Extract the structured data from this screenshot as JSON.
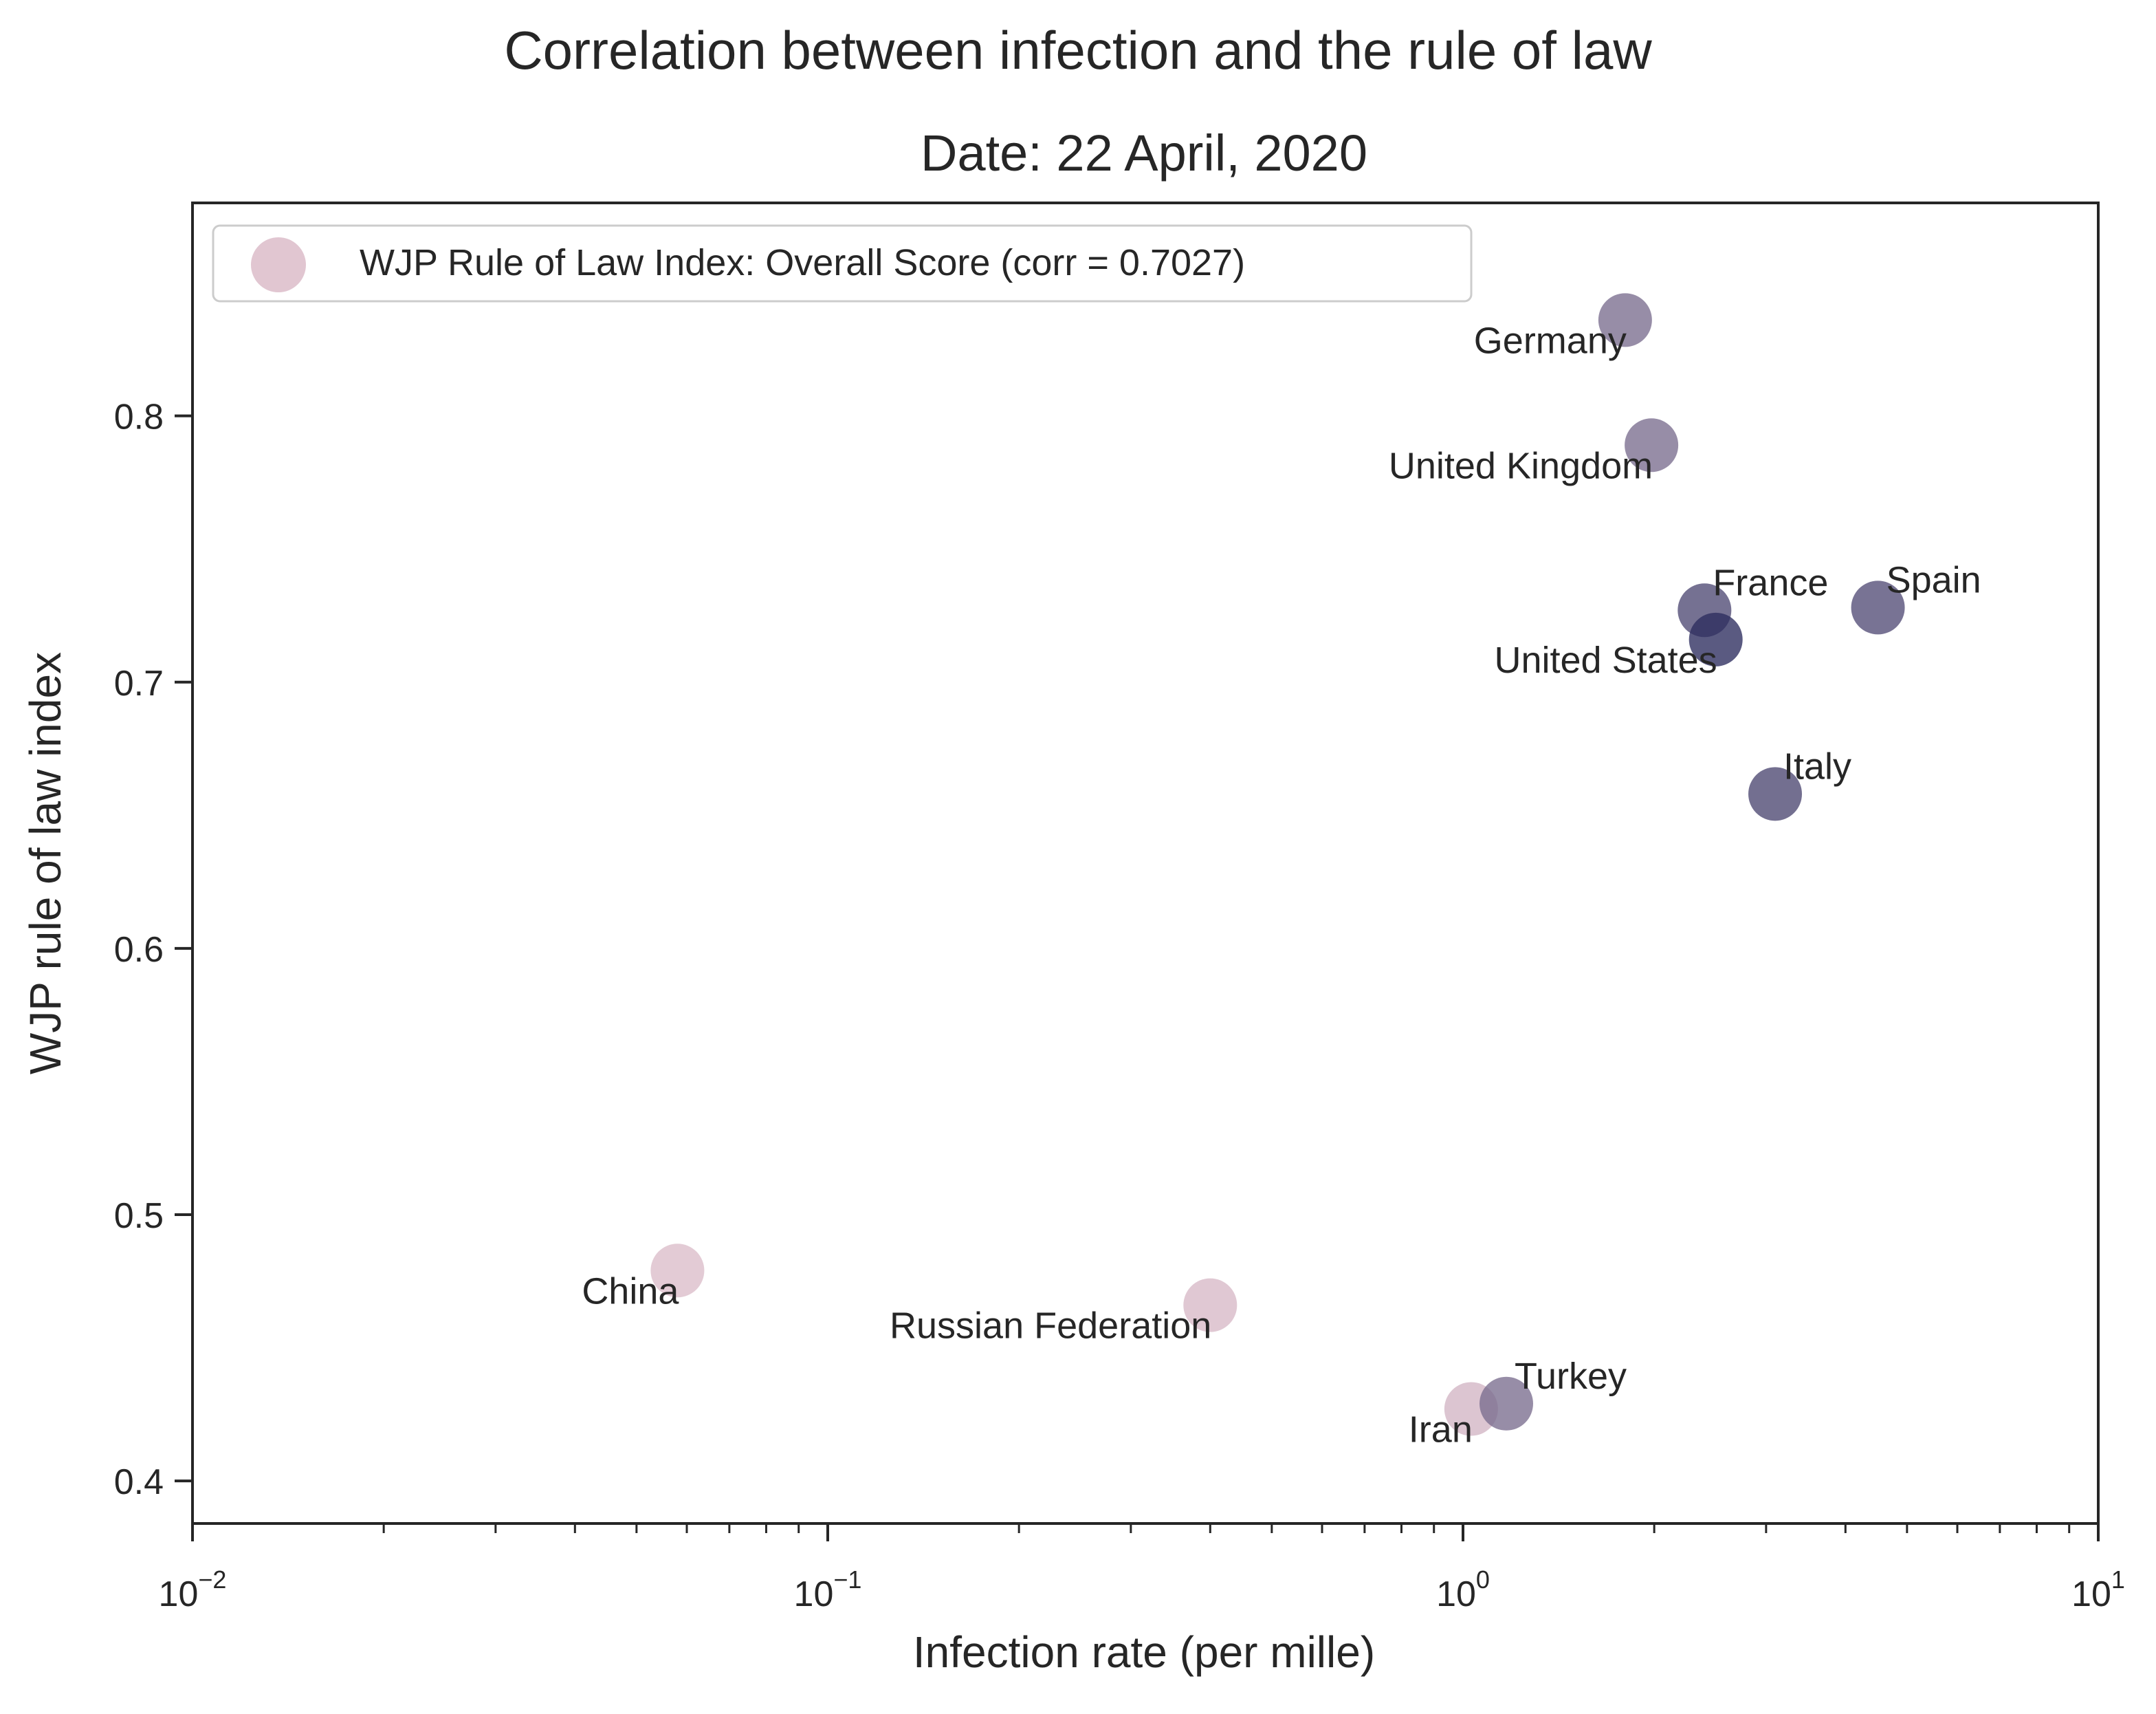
{
  "chart_data": {
    "type": "scatter",
    "title": "Correlation between infection and the rule of law",
    "subtitle": "Date: 22 April, 2020",
    "xlabel": "Infection rate (per mille)",
    "ylabel": "WJP rule of law index",
    "x_scale": "log",
    "xlim": [
      0.01,
      10
    ],
    "ylim": [
      0.384,
      0.88
    ],
    "x_ticks": [
      {
        "value": 0.01,
        "base": "10",
        "exp": "−2"
      },
      {
        "value": 0.1,
        "base": "10",
        "exp": "−1"
      },
      {
        "value": 1,
        "base": "10",
        "exp": "0"
      },
      {
        "value": 10,
        "base": "10",
        "exp": "1"
      }
    ],
    "y_ticks": [
      {
        "value": 0.4,
        "label": "0.4"
      },
      {
        "value": 0.5,
        "label": "0.5"
      },
      {
        "value": 0.6,
        "label": "0.6"
      },
      {
        "value": 0.7,
        "label": "0.7"
      },
      {
        "value": 0.8,
        "label": "0.8"
      }
    ],
    "grid": false,
    "legend": {
      "position": "top-left",
      "label": "WJP Rule of Law Index: Overall Score (corr = 0.7027)",
      "marker_color": "#d9b8c6"
    },
    "color_scale": {
      "low": "#dbbcc9",
      "high": "#2b2c5e"
    },
    "points": [
      {
        "label": "Germany",
        "x": 1.8,
        "y": 0.836,
        "intensity": 0.55,
        "label_side": "lower-left"
      },
      {
        "label": "United Kingdom",
        "x": 1.98,
        "y": 0.789,
        "intensity": 0.55,
        "label_side": "lower-left"
      },
      {
        "label": "France",
        "x": 2.4,
        "y": 0.727,
        "intensity": 0.8,
        "label_side": "upper-right"
      },
      {
        "label": "Spain",
        "x": 4.5,
        "y": 0.728,
        "intensity": 0.78,
        "label_side": "upper-right"
      },
      {
        "label": "United States",
        "x": 2.5,
        "y": 0.716,
        "intensity": 1.0,
        "label_side": "lower-left"
      },
      {
        "label": "Italy",
        "x": 3.1,
        "y": 0.658,
        "intensity": 0.82,
        "label_side": "upper-right"
      },
      {
        "label": "China",
        "x": 0.058,
        "y": 0.479,
        "intensity": 0.0,
        "label_side": "lower-left"
      },
      {
        "label": "Russian Federation",
        "x": 0.4,
        "y": 0.466,
        "intensity": 0.02,
        "label_side": "lower-left"
      },
      {
        "label": "Iran",
        "x": 1.03,
        "y": 0.427,
        "intensity": 0.05,
        "label_side": "lower-left"
      },
      {
        "label": "Turkey",
        "x": 1.17,
        "y": 0.429,
        "intensity": 0.55,
        "label_side": "upper-right"
      }
    ]
  }
}
